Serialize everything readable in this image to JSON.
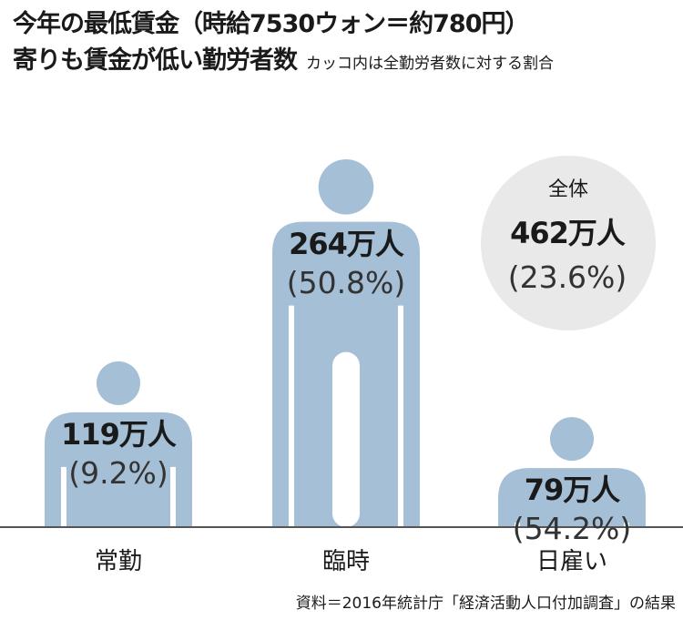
{
  "header": {
    "title_line1": "今年の最低賃金（時給7530ウォン＝約780円）",
    "title_line2": "寄りも賃金が低い勤労者数",
    "note": "カッコ内は全勤労者数に対する割合"
  },
  "colors": {
    "figure": "#a4bfd6",
    "total_circle": "#e9e9e9",
    "baseline": "#555555"
  },
  "chart_data": {
    "type": "bar",
    "categories": [
      "常勤",
      "臨時",
      "日雇い"
    ],
    "values": [
      119,
      264,
      79
    ],
    "value_labels": [
      "119万人",
      "264万人",
      "79万人"
    ],
    "percent_labels": [
      "(9.2%)",
      "(50.8%)",
      "(54.2%)"
    ],
    "percents": [
      9.2,
      50.8,
      54.2
    ],
    "total": {
      "label": "全体",
      "value": 462,
      "value_label": "462万人",
      "percent_label": "(23.6%)",
      "percent": 23.6
    }
  },
  "source": "資料＝2016年統計庁「経済活動人口付加調査」の結果"
}
